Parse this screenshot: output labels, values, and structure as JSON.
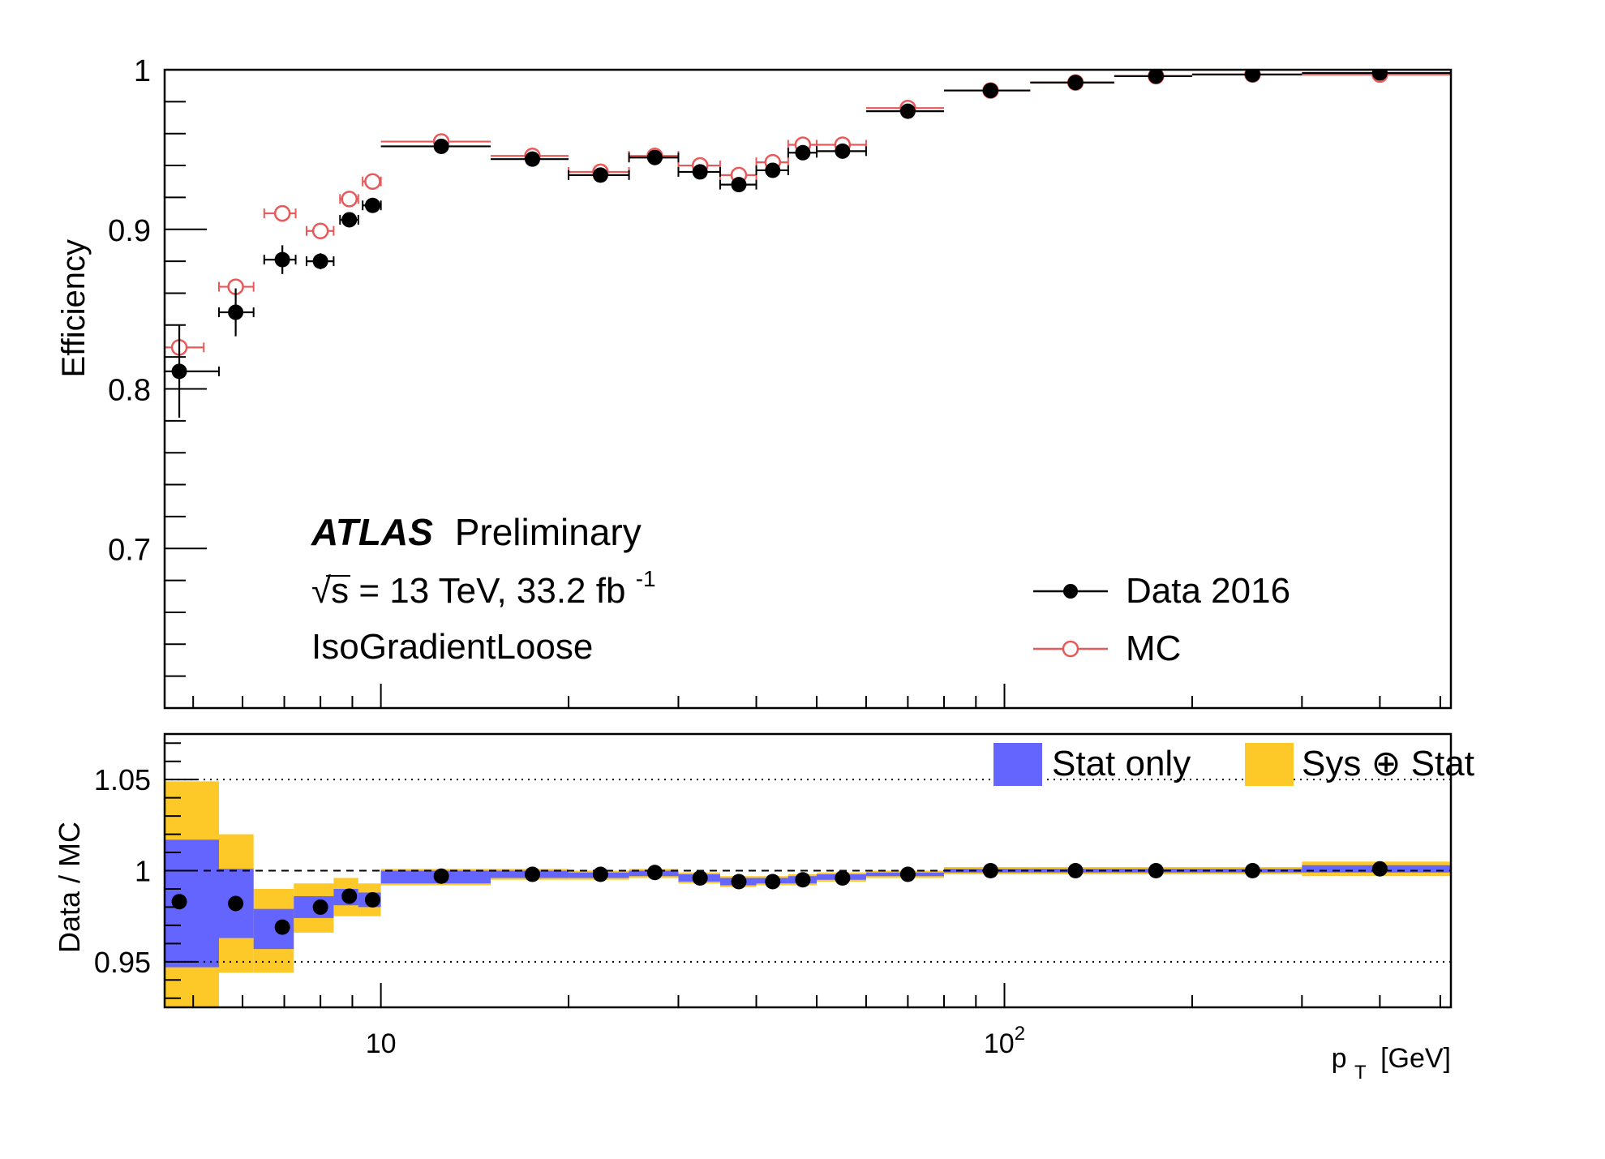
{
  "chart_data": [
    {
      "type": "scatter",
      "title": "",
      "xlabel": "",
      "ylabel": "Efficiency",
      "xscale": "log",
      "xlim": [
        4.5,
        520
      ],
      "ylim": [
        0.6,
        1.0
      ],
      "y_tick_labels": [
        "0.7",
        "0.8",
        "0.9",
        "1"
      ],
      "annotations": {
        "experiment": "ATLAS",
        "status": "Preliminary",
        "energy": "√s = 13 TeV, 33.2 fb",
        "energy_exp": "-1",
        "working_point": "IsoGradientLoose"
      },
      "legend_position": "bottom-right",
      "series": [
        {
          "name": "Data 2016",
          "marker": "filled-circle",
          "color": "#000000",
          "points": [
            {
              "x": 4.75,
              "xlo": 4.5,
              "xhi": 5.5,
              "y": 0.811,
              "yerr": 0.029
            },
            {
              "x": 5.85,
              "xlo": 5.5,
              "xhi": 6.25,
              "y": 0.848,
              "yerr": 0.015
            },
            {
              "x": 6.95,
              "xlo": 6.5,
              "xhi": 7.3,
              "y": 0.881,
              "yerr": 0.009
            },
            {
              "x": 8.0,
              "xlo": 7.6,
              "xhi": 8.4,
              "y": 0.88,
              "yerr": 0.005
            },
            {
              "x": 8.9,
              "xlo": 8.6,
              "xhi": 9.2,
              "y": 0.906,
              "yerr": 0.004
            },
            {
              "x": 9.7,
              "xlo": 9.35,
              "xhi": 10.0,
              "y": 0.915,
              "yerr": 0.003
            },
            {
              "x": 12.5,
              "xlo": 10,
              "xhi": 15,
              "y": 0.952,
              "yerr": 0.001
            },
            {
              "x": 17.5,
              "xlo": 15,
              "xhi": 20,
              "y": 0.944,
              "yerr": 0.001
            },
            {
              "x": 22.5,
              "xlo": 20,
              "xhi": 25,
              "y": 0.934,
              "yerr": 0.001
            },
            {
              "x": 27.5,
              "xlo": 25,
              "xhi": 30,
              "y": 0.945,
              "yerr": 0.001
            },
            {
              "x": 32.5,
              "xlo": 30,
              "xhi": 35,
              "y": 0.936,
              "yerr": 0.001
            },
            {
              "x": 37.5,
              "xlo": 35,
              "xhi": 40,
              "y": 0.928,
              "yerr": 0.001
            },
            {
              "x": 42.5,
              "xlo": 40,
              "xhi": 45,
              "y": 0.937,
              "yerr": 0.001
            },
            {
              "x": 47.5,
              "xlo": 45,
              "xhi": 50,
              "y": 0.948,
              "yerr": 0.001
            },
            {
              "x": 55,
              "xlo": 50,
              "xhi": 60,
              "y": 0.949,
              "yerr": 0.001
            },
            {
              "x": 70,
              "xlo": 60,
              "xhi": 80,
              "y": 0.974,
              "yerr": 0.001
            },
            {
              "x": 95,
              "xlo": 80,
              "xhi": 110,
              "y": 0.987,
              "yerr": 0.001
            },
            {
              "x": 130,
              "xlo": 110,
              "xhi": 150,
              "y": 0.992,
              "yerr": 0.001
            },
            {
              "x": 175,
              "xlo": 150,
              "xhi": 200,
              "y": 0.996,
              "yerr": 0.001
            },
            {
              "x": 250,
              "xlo": 200,
              "xhi": 300,
              "y": 0.997,
              "yerr": 0.001
            },
            {
              "x": 400,
              "xlo": 300,
              "xhi": 520,
              "y": 0.998,
              "yerr": 0.001
            }
          ]
        },
        {
          "name": "MC",
          "marker": "open-circle",
          "color": "#e8595a",
          "points": [
            {
              "x": 4.75,
              "xlo": 4.5,
              "xhi": 5.2,
              "y": 0.826,
              "yerr": 0.002
            },
            {
              "x": 5.85,
              "xlo": 5.5,
              "xhi": 6.25,
              "y": 0.864,
              "yerr": 0.002
            },
            {
              "x": 6.95,
              "xlo": 6.5,
              "xhi": 7.3,
              "y": 0.91,
              "yerr": 0.002
            },
            {
              "x": 8.0,
              "xlo": 7.6,
              "xhi": 8.4,
              "y": 0.899,
              "yerr": 0.002
            },
            {
              "x": 8.9,
              "xlo": 8.6,
              "xhi": 9.2,
              "y": 0.919,
              "yerr": 0.002
            },
            {
              "x": 9.7,
              "xlo": 9.35,
              "xhi": 10.0,
              "y": 0.93,
              "yerr": 0.002
            },
            {
              "x": 12.5,
              "xlo": 10,
              "xhi": 15,
              "y": 0.955,
              "yerr": 0.001
            },
            {
              "x": 17.5,
              "xlo": 15,
              "xhi": 20,
              "y": 0.946,
              "yerr": 0.001
            },
            {
              "x": 22.5,
              "xlo": 20,
              "xhi": 25,
              "y": 0.936,
              "yerr": 0.001
            },
            {
              "x": 27.5,
              "xlo": 25,
              "xhi": 30,
              "y": 0.946,
              "yerr": 0.001
            },
            {
              "x": 32.5,
              "xlo": 30,
              "xhi": 35,
              "y": 0.94,
              "yerr": 0.001
            },
            {
              "x": 37.5,
              "xlo": 35,
              "xhi": 40,
              "y": 0.934,
              "yerr": 0.001
            },
            {
              "x": 42.5,
              "xlo": 40,
              "xhi": 45,
              "y": 0.942,
              "yerr": 0.001
            },
            {
              "x": 47.5,
              "xlo": 45,
              "xhi": 50,
              "y": 0.953,
              "yerr": 0.001
            },
            {
              "x": 55,
              "xlo": 50,
              "xhi": 60,
              "y": 0.953,
              "yerr": 0.001
            },
            {
              "x": 70,
              "xlo": 60,
              "xhi": 80,
              "y": 0.976,
              "yerr": 0.001
            },
            {
              "x": 95,
              "xlo": 80,
              "xhi": 110,
              "y": 0.987,
              "yerr": 0.001
            },
            {
              "x": 130,
              "xlo": 110,
              "xhi": 150,
              "y": 0.992,
              "yerr": 0.001
            },
            {
              "x": 175,
              "xlo": 150,
              "xhi": 200,
              "y": 0.996,
              "yerr": 0.001
            },
            {
              "x": 250,
              "xlo": 200,
              "xhi": 300,
              "y": 0.997,
              "yerr": 0.001
            },
            {
              "x": 400,
              "xlo": 300,
              "xhi": 520,
              "y": 0.997,
              "yerr": 0.001
            }
          ]
        }
      ]
    },
    {
      "type": "scatter",
      "title": "",
      "xlabel": "p",
      "xlabel_sub": "T",
      "xlabel_unit": "[GeV]",
      "ylabel": "Data / MC",
      "xscale": "log",
      "xlim": [
        4.5,
        520
      ],
      "ylim": [
        0.925,
        1.075
      ],
      "y_tick_labels": [
        "0.95",
        "1",
        "1.05"
      ],
      "x_tick_labels": [
        {
          "x": 10,
          "base": "10",
          "exp": ""
        },
        {
          "x": 100,
          "base": "10",
          "exp": "2"
        }
      ],
      "legend_position": "top-right",
      "bands": [
        {
          "name": "Stat only",
          "color": "#6464ff"
        },
        {
          "name": "Sys ⊕ Stat",
          "color": "#fdc929"
        }
      ],
      "points": [
        {
          "xlo": 4.5,
          "xhi": 5.5,
          "x": 4.75,
          "y": 0.983,
          "stat": [
            0.947,
            1.017
          ],
          "sys": [
            0.92,
            1.049
          ]
        },
        {
          "xlo": 5.5,
          "xhi": 6.25,
          "x": 5.85,
          "y": 0.982,
          "stat": [
            0.963,
            1.001
          ],
          "sys": [
            0.944,
            1.02
          ]
        },
        {
          "xlo": 6.25,
          "xhi": 7.25,
          "x": 6.95,
          "y": 0.969,
          "stat": [
            0.957,
            0.979
          ],
          "sys": [
            0.944,
            0.99
          ]
        },
        {
          "xlo": 7.25,
          "xhi": 8.4,
          "x": 8.0,
          "y": 0.98,
          "stat": [
            0.974,
            0.986
          ],
          "sys": [
            0.966,
            0.993
          ]
        },
        {
          "xlo": 8.4,
          "xhi": 9.2,
          "x": 8.9,
          "y": 0.986,
          "stat": [
            0.981,
            0.99
          ],
          "sys": [
            0.975,
            0.996
          ]
        },
        {
          "xlo": 9.2,
          "xhi": 10.0,
          "x": 9.7,
          "y": 0.984,
          "stat": [
            0.98,
            0.988
          ],
          "sys": [
            0.975,
            0.993
          ]
        },
        {
          "xlo": 10,
          "xhi": 15,
          "x": 12.5,
          "y": 0.997,
          "stat": [
            0.993,
            1.0
          ],
          "sys": [
            0.992,
            1.001
          ]
        },
        {
          "xlo": 15,
          "xhi": 20,
          "x": 17.5,
          "y": 0.998,
          "stat": [
            0.996,
            1.0
          ],
          "sys": [
            0.995,
            1.001
          ]
        },
        {
          "xlo": 20,
          "xhi": 25,
          "x": 22.5,
          "y": 0.998,
          "stat": [
            0.996,
            0.999
          ],
          "sys": [
            0.995,
            1.0
          ]
        },
        {
          "xlo": 25,
          "xhi": 30,
          "x": 27.5,
          "y": 0.999,
          "stat": [
            0.997,
            1.0
          ],
          "sys": [
            0.996,
            1.001
          ]
        },
        {
          "xlo": 30,
          "xhi": 35,
          "x": 32.5,
          "y": 0.996,
          "stat": [
            0.994,
            0.998
          ],
          "sys": [
            0.993,
            0.999
          ]
        },
        {
          "xlo": 35,
          "xhi": 40,
          "x": 37.5,
          "y": 0.994,
          "stat": [
            0.992,
            0.996
          ],
          "sys": [
            0.991,
            0.997
          ]
        },
        {
          "xlo": 40,
          "xhi": 45,
          "x": 42.5,
          "y": 0.994,
          "stat": [
            0.993,
            0.996
          ],
          "sys": [
            0.992,
            0.997
          ]
        },
        {
          "xlo": 45,
          "xhi": 50,
          "x": 47.5,
          "y": 0.995,
          "stat": [
            0.993,
            0.997
          ],
          "sys": [
            0.992,
            0.998
          ]
        },
        {
          "xlo": 50,
          "xhi": 60,
          "x": 55,
          "y": 0.996,
          "stat": [
            0.995,
            0.998
          ],
          "sys": [
            0.994,
            0.999
          ]
        },
        {
          "xlo": 60,
          "xhi": 80,
          "x": 70,
          "y": 0.998,
          "stat": [
            0.997,
            0.999
          ],
          "sys": [
            0.996,
            1.0
          ]
        },
        {
          "xlo": 80,
          "xhi": 110,
          "x": 95,
          "y": 1.0,
          "stat": [
            0.999,
            1.001
          ],
          "sys": [
            0.998,
            1.002
          ]
        },
        {
          "xlo": 110,
          "xhi": 150,
          "x": 130,
          "y": 1.0,
          "stat": [
            0.999,
            1.001
          ],
          "sys": [
            0.998,
            1.002
          ]
        },
        {
          "xlo": 150,
          "xhi": 200,
          "x": 175,
          "y": 1.0,
          "stat": [
            0.999,
            1.001
          ],
          "sys": [
            0.998,
            1.002
          ]
        },
        {
          "xlo": 200,
          "xhi": 300,
          "x": 250,
          "y": 1.0,
          "stat": [
            0.999,
            1.001
          ],
          "sys": [
            0.998,
            1.002
          ]
        },
        {
          "xlo": 300,
          "xhi": 520,
          "x": 400,
          "y": 1.001,
          "stat": [
            0.999,
            1.003
          ],
          "sys": [
            0.997,
            1.005
          ]
        }
      ]
    }
  ]
}
